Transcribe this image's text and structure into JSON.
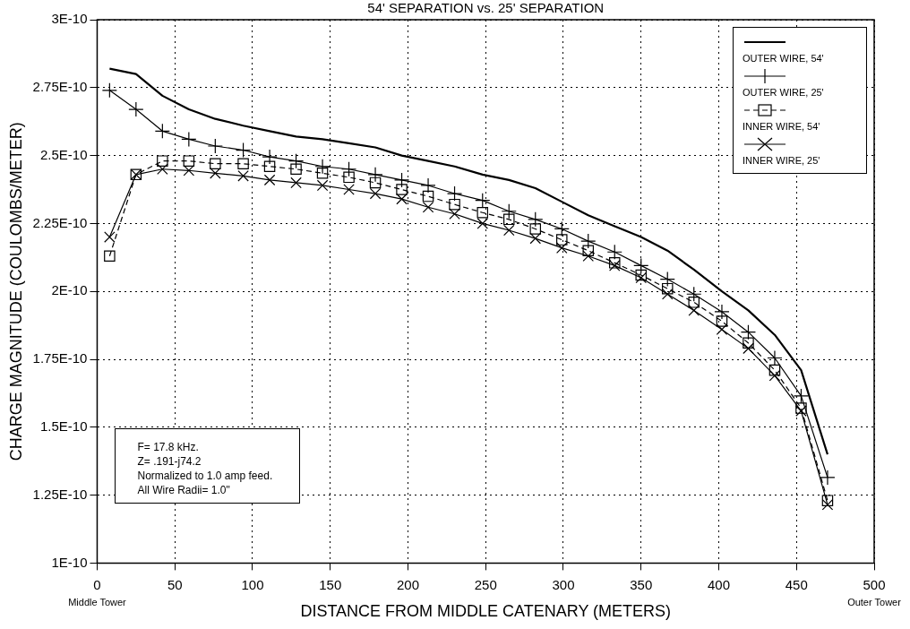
{
  "chart_data": {
    "type": "line",
    "title": "54' SEPARATION vs. 25' SEPARATION",
    "xlabel": "DISTANCE FROM MIDDLE CATENARY (METERS)",
    "ylabel": "CHARGE MAGNITUDE (COULOMBS/METER)",
    "x": [
      8,
      25,
      42,
      59,
      76,
      94,
      111,
      128,
      145,
      162,
      179,
      196,
      213,
      230,
      248,
      265,
      282,
      299,
      316,
      333,
      350,
      367,
      384,
      402,
      419,
      436,
      453,
      470
    ],
    "series": [
      {
        "name": "OUTER WIRE, 54'",
        "color": "#000000",
        "marker": "none",
        "line_style": "solid",
        "values": [
          2.82e-10,
          2.8e-10,
          2.72e-10,
          2.67e-10,
          2.635e-10,
          2.61e-10,
          2.59e-10,
          2.57e-10,
          2.56e-10,
          2.545e-10,
          2.53e-10,
          2.5e-10,
          2.48e-10,
          2.46e-10,
          2.43e-10,
          2.41e-10,
          2.38e-10,
          2.33e-10,
          2.28e-10,
          2.24e-10,
          2.2e-10,
          2.15e-10,
          2.08e-10,
          2e-10,
          1.93e-10,
          1.84e-10,
          1.71e-10,
          1.4e-10
        ]
      },
      {
        "name": "OUTER WIRE, 25'",
        "color": "#000000",
        "marker": "plus",
        "line_style": "solid",
        "values": [
          2.74e-10,
          2.67e-10,
          2.59e-10,
          2.56e-10,
          2.535e-10,
          2.52e-10,
          2.495e-10,
          2.48e-10,
          2.46e-10,
          2.45e-10,
          2.43e-10,
          2.41e-10,
          2.39e-10,
          2.36e-10,
          2.335e-10,
          2.295e-10,
          2.265e-10,
          2.23e-10,
          2.185e-10,
          2.145e-10,
          2.095e-10,
          2.045e-10,
          1.99e-10,
          1.925e-10,
          1.85e-10,
          1.755e-10,
          1.615e-10,
          1.315e-10
        ]
      },
      {
        "name": "INNER WIRE, 54'",
        "color": "#000000",
        "marker": "square",
        "line_style": "dashed",
        "values": [
          2.13e-10,
          2.43e-10,
          2.48e-10,
          2.48e-10,
          2.47e-10,
          2.47e-10,
          2.46e-10,
          2.45e-10,
          2.435e-10,
          2.42e-10,
          2.4e-10,
          2.375e-10,
          2.35e-10,
          2.32e-10,
          2.29e-10,
          2.265e-10,
          2.23e-10,
          2.19e-10,
          2.15e-10,
          2.105e-10,
          2.06e-10,
          2.01e-10,
          1.96e-10,
          1.89e-10,
          1.81e-10,
          1.71e-10,
          1.57e-10,
          1.23e-10
        ]
      },
      {
        "name": "INNER WIRE, 25'",
        "color": "#000000",
        "marker": "cross",
        "line_style": "solid",
        "values": [
          2.2e-10,
          2.43e-10,
          2.45e-10,
          2.445e-10,
          2.435e-10,
          2.425e-10,
          2.41e-10,
          2.4e-10,
          2.39e-10,
          2.375e-10,
          2.36e-10,
          2.34e-10,
          2.31e-10,
          2.285e-10,
          2.25e-10,
          2.225e-10,
          2.195e-10,
          2.16e-10,
          2.13e-10,
          2.095e-10,
          2.05e-10,
          1.99e-10,
          1.93e-10,
          1.86e-10,
          1.79e-10,
          1.69e-10,
          1.56e-10,
          1.215e-10
        ]
      }
    ],
    "xlim": [
      0,
      500
    ],
    "xticks": [
      0,
      50,
      100,
      150,
      200,
      250,
      300,
      350,
      400,
      450,
      500
    ],
    "ylim": [
      1e-10,
      3e-10
    ],
    "yticks": [
      {
        "value": 1e-10,
        "label": "1E-10"
      },
      {
        "value": 1.25e-10,
        "label": "1.25E-10"
      },
      {
        "value": 1.5e-10,
        "label": "1.5E-10"
      },
      {
        "value": 1.75e-10,
        "label": "1.75E-10"
      },
      {
        "value": 2e-10,
        "label": "2E-10"
      },
      {
        "value": 2.25e-10,
        "label": "2.25E-10"
      },
      {
        "value": 2.5e-10,
        "label": "2.5E-10"
      },
      {
        "value": 2.75e-10,
        "label": "2.75E-10"
      },
      {
        "value": 3e-10,
        "label": "3E-10"
      }
    ],
    "grid": true,
    "legend": "top right",
    "annotations": [
      "F= 17.8 kHz.\nZ= .191-j74.2\nNormalized to 1.0 amp feed.\nAll Wire Radii= 1.0\"",
      "Middle Tower",
      "Outer Tower"
    ]
  }
}
